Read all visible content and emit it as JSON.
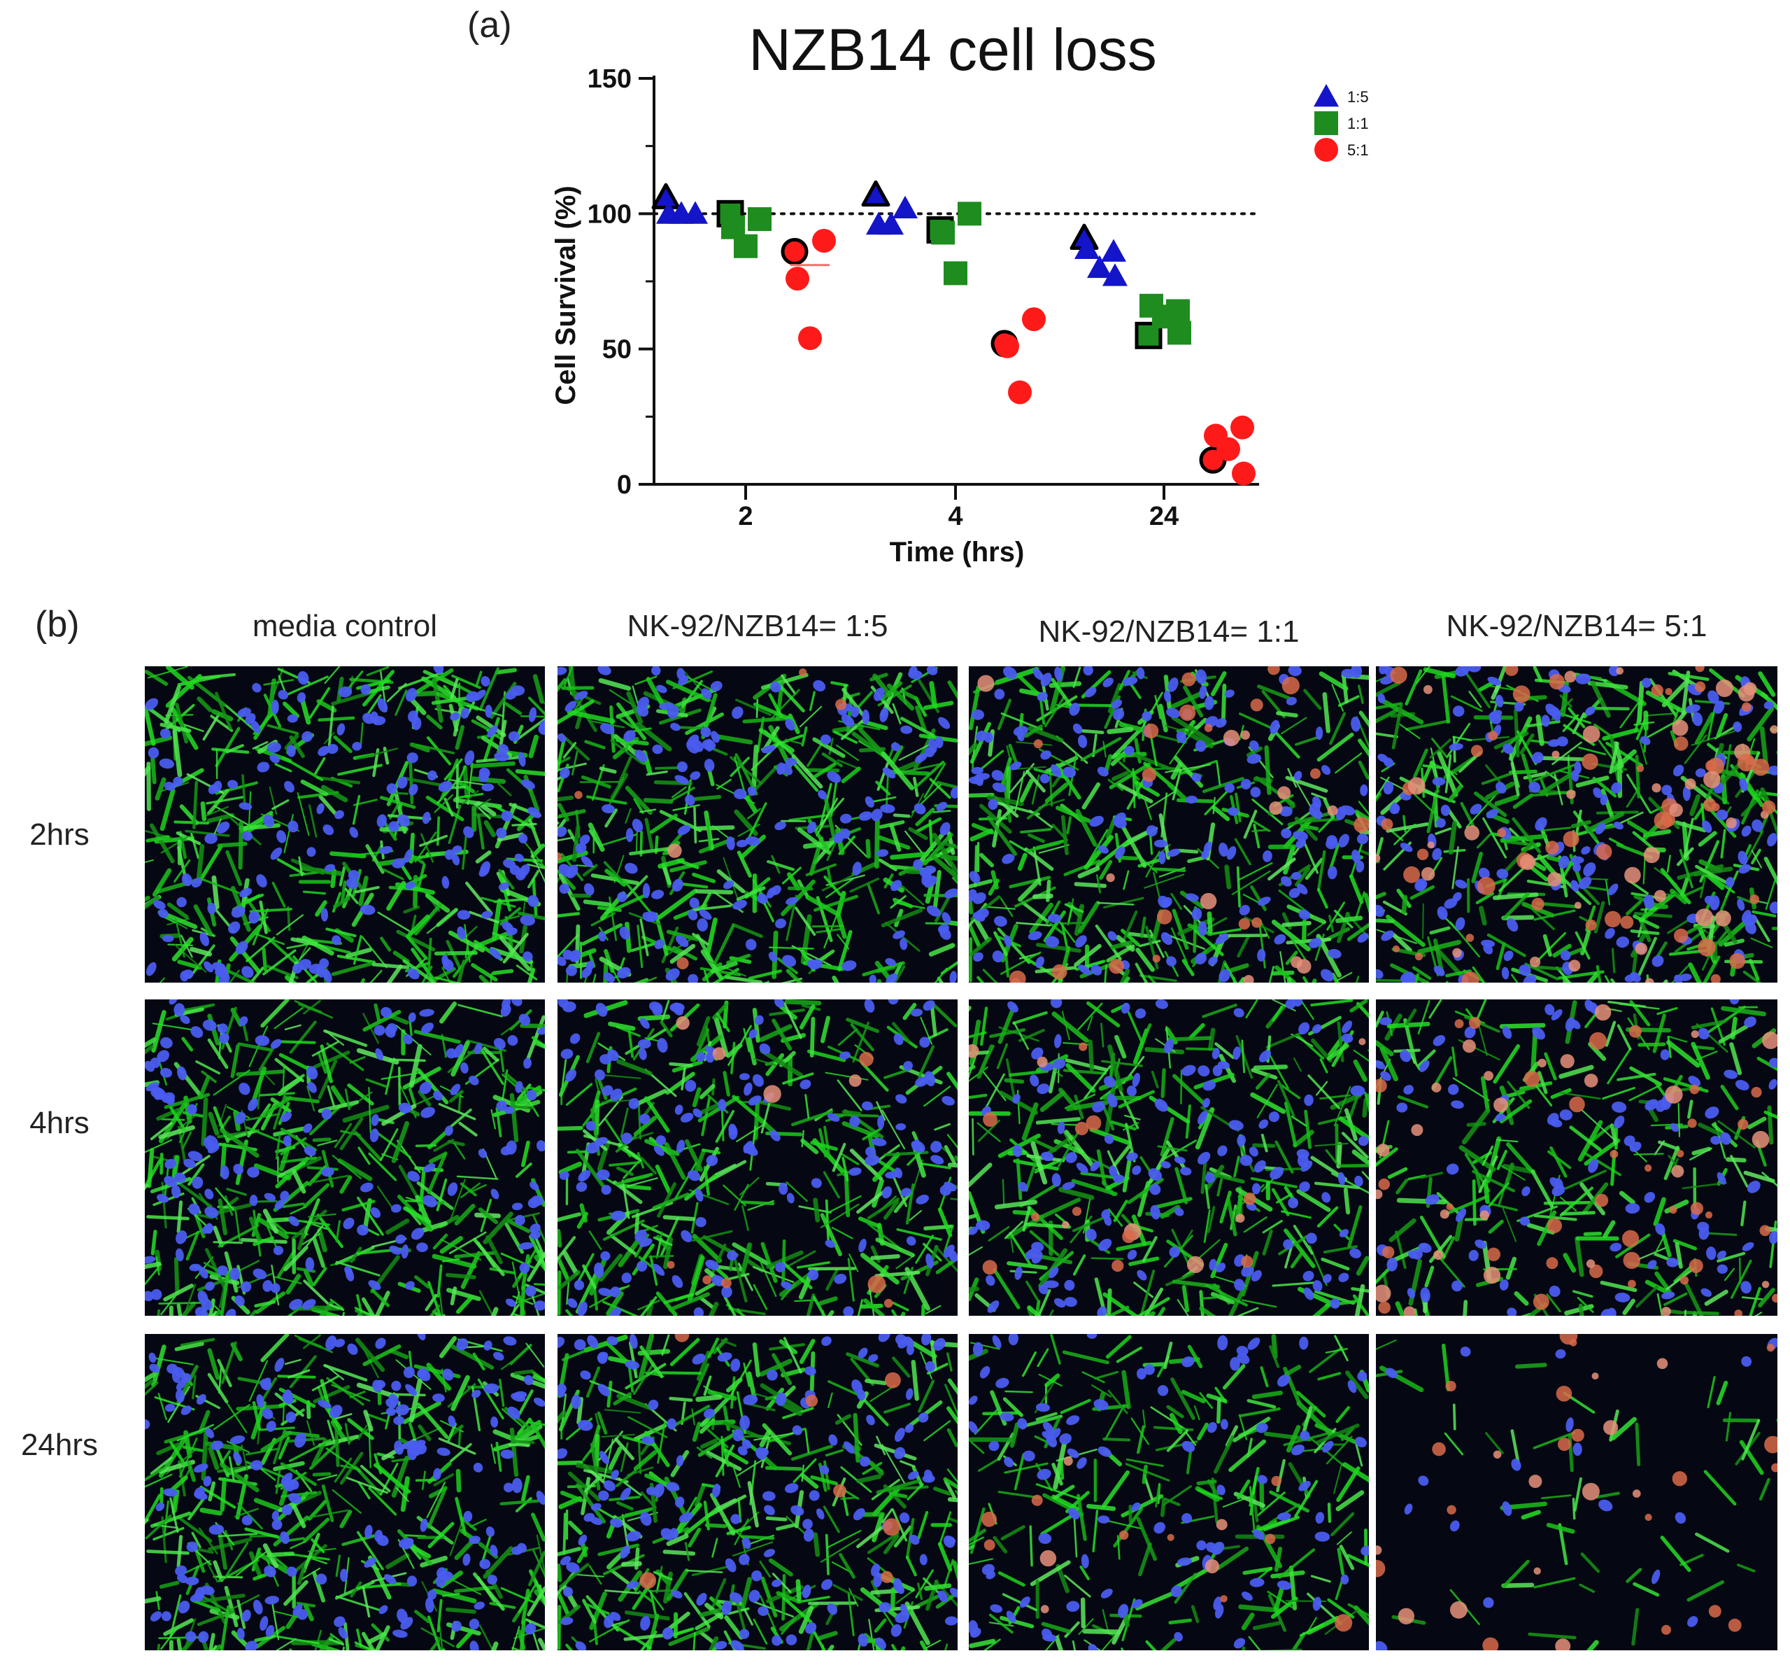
{
  "panel_a": {
    "label": "(a)"
  },
  "panel_b": {
    "label": "(b)"
  },
  "colors": {
    "1:5": "#1414c8",
    "1:1": "#1e8c1e",
    "5:1": "#ff1a1a",
    "outline": "#000000",
    "median_5to1": "#ff6b6b"
  },
  "chart_data": {
    "type": "scatter",
    "title": "NZB14 cell loss",
    "xlabel": "Time (hrs)",
    "ylabel": "Cell Survival (%)",
    "categories": [
      "2",
      "4",
      "24"
    ],
    "ylim": [
      0,
      150
    ],
    "yticks": [
      0,
      50,
      100,
      150
    ],
    "reference_line": 100,
    "legend_position": "top-right",
    "series": [
      {
        "name": "1:5",
        "marker": "triangle",
        "points": [
          {
            "x": "2",
            "y": 106,
            "highlight": true
          },
          {
            "x": "2",
            "y": 100
          },
          {
            "x": "2",
            "y": 100
          },
          {
            "x": "2",
            "y": 100
          },
          {
            "x": "4",
            "y": 107,
            "highlight": true
          },
          {
            "x": "4",
            "y": 102
          },
          {
            "x": "4",
            "y": 96
          },
          {
            "x": "4",
            "y": 96
          },
          {
            "x": "24",
            "y": 91,
            "highlight": true
          },
          {
            "x": "24",
            "y": 86
          },
          {
            "x": "24",
            "y": 87
          },
          {
            "x": "24",
            "y": 80
          },
          {
            "x": "24",
            "y": 77
          }
        ]
      },
      {
        "name": "1:1",
        "marker": "square",
        "points": [
          {
            "x": "2",
            "y": 100,
            "highlight": true
          },
          {
            "x": "2",
            "y": 98
          },
          {
            "x": "2",
            "y": 95
          },
          {
            "x": "2",
            "y": 88
          },
          {
            "x": "4",
            "y": 94,
            "highlight": true
          },
          {
            "x": "4",
            "y": 100
          },
          {
            "x": "4",
            "y": 93
          },
          {
            "x": "4",
            "y": 78
          },
          {
            "x": "24",
            "y": 55,
            "highlight": true
          },
          {
            "x": "24",
            "y": 64
          },
          {
            "x": "24",
            "y": 66
          },
          {
            "x": "24",
            "y": 62
          },
          {
            "x": "24",
            "y": 56
          }
        ]
      },
      {
        "name": "5:1",
        "marker": "circle",
        "points": [
          {
            "x": "2",
            "y": 86,
            "highlight": true
          },
          {
            "x": "2",
            "y": 90
          },
          {
            "x": "2",
            "y": 76
          },
          {
            "x": "2",
            "y": 54
          },
          {
            "x": "4",
            "y": 52,
            "highlight": true
          },
          {
            "x": "4",
            "y": 61
          },
          {
            "x": "4",
            "y": 51
          },
          {
            "x": "4",
            "y": 34
          },
          {
            "x": "24",
            "y": 9,
            "highlight": true
          },
          {
            "x": "24",
            "y": 21
          },
          {
            "x": "24",
            "y": 18
          },
          {
            "x": "24",
            "y": 13
          },
          {
            "x": "24",
            "y": 4
          }
        ],
        "medians": [
          {
            "x": "2",
            "y": 81
          }
        ]
      }
    ]
  },
  "micrograph_grid": {
    "columns": [
      "media control",
      "NK-92/NZB14= 1:5",
      "NK-92/NZB14= 1:1",
      "NK-92/NZB14= 5:1"
    ],
    "rows": [
      "2hrs",
      "4hrs",
      "24hrs"
    ],
    "cell_density": [
      [
        1.0,
        1.0,
        0.95,
        0.95
      ],
      [
        1.0,
        0.85,
        0.8,
        0.6
      ],
      [
        1.0,
        0.95,
        0.6,
        0.12
      ]
    ],
    "red_signal": [
      [
        0.0,
        0.05,
        0.25,
        0.7
      ],
      [
        0.0,
        0.08,
        0.15,
        0.5
      ],
      [
        0.0,
        0.06,
        0.12,
        0.25
      ]
    ]
  }
}
